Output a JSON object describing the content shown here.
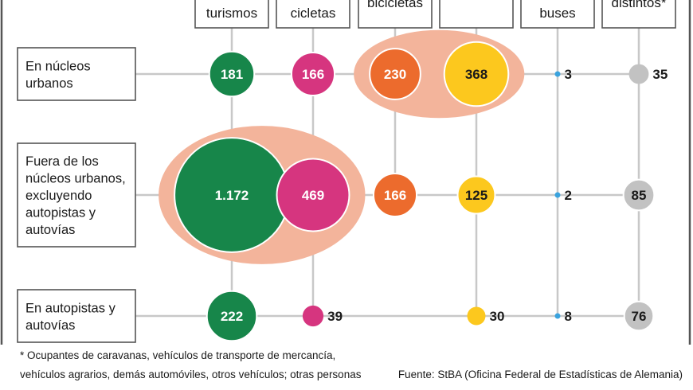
{
  "colors": {
    "grid": "#c8c8c8",
    "highlight": "#f3b49b",
    "turismos": "#17864a",
    "cicletas": "#d6357f",
    "bicicletas": "#ec6b2d",
    "amarillo": "#fcc81e",
    "buses": "#3aa3de",
    "distintos": "#c2c2c2",
    "border": "#555555"
  },
  "chart_data": {
    "type": "bubble-matrix",
    "columns": [
      {
        "key": "turismos",
        "label": "turismos"
      },
      {
        "key": "cicletas",
        "label": "cicletas"
      },
      {
        "key": "bicicletas",
        "label": "bicicletas"
      },
      {
        "key": "col4",
        "label": ""
      },
      {
        "key": "buses",
        "label": "buses"
      },
      {
        "key": "distintos",
        "label": "distintos*"
      }
    ],
    "rows": [
      {
        "key": "urbanos",
        "label_lines": [
          "En núcleos",
          "urbanos"
        ],
        "values": [
          "181",
          "166",
          "230",
          "368",
          "3",
          "35"
        ],
        "numeric": [
          181,
          166,
          230,
          368,
          3,
          35
        ]
      },
      {
        "key": "fuera",
        "label_lines": [
          "Fuera de los",
          "núcleos urbanos,",
          "excluyendo",
          "autopistas y",
          "autovías"
        ],
        "values": [
          "1.172",
          "469",
          "166",
          "125",
          "2",
          "85"
        ],
        "numeric": [
          1172,
          469,
          166,
          125,
          2,
          85
        ]
      },
      {
        "key": "autopistas",
        "label_lines": [
          "En autopistas y",
          "autovías"
        ],
        "values": [
          "222",
          "39",
          "",
          "30",
          "8",
          "76"
        ],
        "numeric": [
          222,
          39,
          null,
          30,
          8,
          76
        ]
      }
    ],
    "highlights": [
      {
        "row": "urbanos",
        "columns": [
          "bicicletas",
          "col4"
        ]
      },
      {
        "row": "fuera",
        "columns": [
          "turismos",
          "cicletas"
        ]
      }
    ]
  },
  "footnote": {
    "line1": "* Ocupantes de caravanas, vehículos de transporte de mercancía,",
    "line2": "vehículos agrarios, demás automóviles, otros vehículos; otras personas"
  },
  "source": "Fuente: StBA (Oficina Federal de Estadísticas de Alemania)"
}
